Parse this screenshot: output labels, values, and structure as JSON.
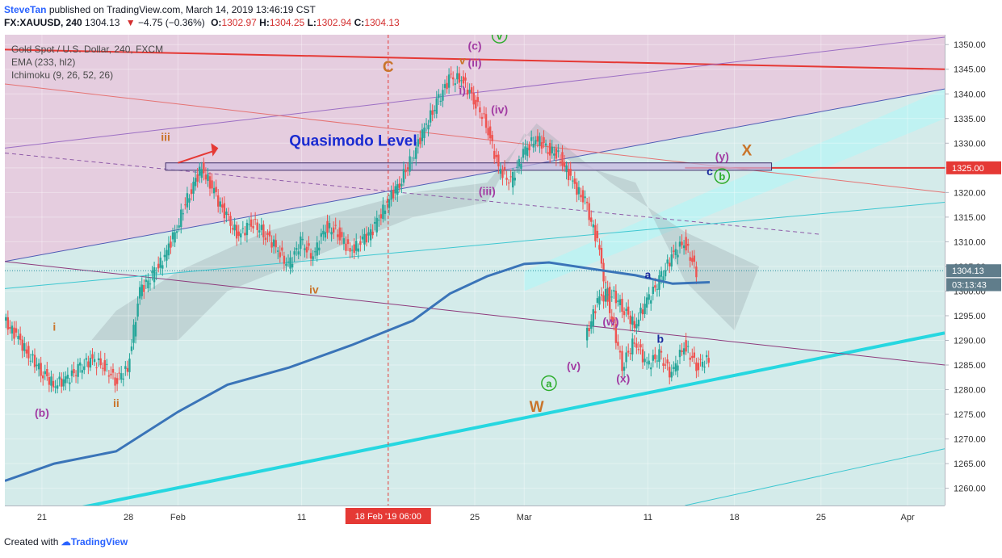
{
  "header": {
    "author": "SteveTan",
    "published": "published on TradingView.com, March 14, 2019 13:46:19 CST",
    "symbol": "FX:XAUUSD, 240",
    "last": "1304.13",
    "change": "−4.75 (−0.36%)",
    "open_label": "O:",
    "open": "1302.97",
    "high_label": "H:",
    "high": "1304.25",
    "low_label": "L:",
    "low": "1302.94",
    "close_label": "C:",
    "close": "1304.13"
  },
  "legend": {
    "title": "Gold Spot / U.S. Dollar, 240, FXCM",
    "ema": "EMA (233, hl2)",
    "ichimoku": "Ichimoku (9, 26, 52, 26)"
  },
  "chart_data": {
    "type": "candlestick",
    "y_axis": {
      "range": [
        1256.5,
        1352
      ],
      "ticks": [
        1260,
        1265,
        1270,
        1275,
        1280,
        1285,
        1290,
        1295,
        1300,
        1305,
        1310,
        1315,
        1320,
        1325,
        1330,
        1335,
        1340,
        1345,
        1350
      ],
      "tick_labels": [
        "1260.00",
        "1265.00",
        "1270.00",
        "1275.00",
        "1280.00",
        "1285.00",
        "1290.00",
        "1295.00",
        "1300.00",
        "1305.00",
        "1310.00",
        "1315.00",
        "1320.00",
        "1325.00",
        "1330.00",
        "1335.00",
        "1340.00",
        "1345.00",
        "1350.00"
      ]
    },
    "x_axis": {
      "range": [
        "2019-01-18",
        "2019-04-04"
      ],
      "ticks": [
        "2019-01-21",
        "2019-01-28",
        "2019-02-01",
        "2019-02-11",
        "2019-02-25",
        "2019-03-01",
        "2019-03-11",
        "2019-03-18",
        "2019-03-25",
        "2019-04-01"
      ],
      "tick_labels": [
        "21",
        "28",
        "Feb",
        "11",
        "25",
        "Mar",
        "11",
        "18",
        "25",
        "Apr"
      ],
      "crosshair_label": "18 Feb '19   06:00",
      "crosshair_date": "2019-02-18"
    },
    "price_labels": [
      {
        "value": 1325.0,
        "text": "1325.00",
        "color": "#e53935"
      },
      {
        "value": 1304.13,
        "text": "1304.13",
        "color": "#607d8b"
      },
      {
        "value": 1301.3,
        "text": "03:13:43",
        "color": "#607d8b"
      }
    ],
    "series": [
      {
        "name": "EMA (233, hl2)",
        "type": "line",
        "color": "#3a74b8",
        "points": [
          [
            "2019-01-18",
            1261.5
          ],
          [
            "2019-01-22",
            1265
          ],
          [
            "2019-01-27",
            1267.5
          ],
          [
            "2019-02-01",
            1275.5
          ],
          [
            "2019-02-05",
            1281
          ],
          [
            "2019-02-10",
            1284.5
          ],
          [
            "2019-02-15",
            1289
          ],
          [
            "2019-02-20",
            1294
          ],
          [
            "2019-02-23",
            1299.5
          ],
          [
            "2019-02-26",
            1303
          ],
          [
            "2019-03-01",
            1305.5
          ],
          [
            "2019-03-03",
            1305.8
          ],
          [
            "2019-03-07",
            1304.3
          ],
          [
            "2019-03-10",
            1303.2
          ],
          [
            "2019-03-13",
            1301.5
          ],
          [
            "2019-03-16",
            1301.8
          ]
        ]
      },
      {
        "name": "Price",
        "type": "candlestick",
        "color_up": "#26a69a",
        "color_down": "#ef5350",
        "path": [
          [
            "2019-01-18",
            1294
          ],
          [
            "2019-01-19",
            1291
          ],
          [
            "2019-01-20",
            1287
          ],
          [
            "2019-01-21",
            1284
          ],
          [
            "2019-01-22",
            1281
          ],
          [
            "2019-01-23",
            1282
          ],
          [
            "2019-01-24",
            1284
          ],
          [
            "2019-01-25",
            1286
          ],
          [
            "2019-01-26",
            1285
          ],
          [
            "2019-01-27",
            1282
          ],
          [
            "2019-01-28",
            1284
          ],
          [
            "2019-01-29",
            1300
          ],
          [
            "2019-01-30",
            1303
          ],
          [
            "2019-01-31",
            1307
          ],
          [
            "2019-02-01",
            1313
          ],
          [
            "2019-02-02",
            1320
          ],
          [
            "2019-02-03",
            1325
          ],
          [
            "2019-02-04",
            1320
          ],
          [
            "2019-02-05",
            1315
          ],
          [
            "2019-02-06",
            1311
          ],
          [
            "2019-02-07",
            1314
          ],
          [
            "2019-02-08",
            1312
          ],
          [
            "2019-02-09",
            1309
          ],
          [
            "2019-02-10",
            1305
          ],
          [
            "2019-02-11",
            1310
          ],
          [
            "2019-02-12",
            1307
          ],
          [
            "2019-02-13",
            1313
          ],
          [
            "2019-02-14",
            1312
          ],
          [
            "2019-02-15",
            1308
          ],
          [
            "2019-02-16",
            1310
          ],
          [
            "2019-02-17",
            1313
          ],
          [
            "2019-02-18",
            1318
          ],
          [
            "2019-02-19",
            1322
          ],
          [
            "2019-02-20",
            1327
          ],
          [
            "2019-02-21",
            1333
          ],
          [
            "2019-02-22",
            1338
          ],
          [
            "2019-02-23",
            1343
          ],
          [
            "2019-02-24",
            1343
          ],
          [
            "2019-02-25",
            1339
          ],
          [
            "2019-02-26",
            1334
          ],
          [
            "2019-02-27",
            1325
          ],
          [
            "2019-02-28",
            1322
          ],
          [
            "2019-03-01",
            1328
          ],
          [
            "2019-03-02",
            1331
          ],
          [
            "2019-03-03",
            1329
          ],
          [
            "2019-03-04",
            1327
          ],
          [
            "2019-03-05",
            1322
          ],
          [
            "2019-03-06",
            1318
          ],
          [
            "2019-03-07",
            1310
          ],
          [
            "2019-03-08",
            1296
          ],
          [
            "2019-03-09",
            1285
          ],
          [
            "2019-03-10",
            1290
          ],
          [
            "2019-03-11",
            1285
          ],
          [
            "2019-03-12",
            1287
          ],
          [
            "2019-03-13",
            1283
          ],
          [
            "2019-03-14",
            1289
          ],
          [
            "2019-03-15",
            1285
          ],
          [
            "2019-03-16",
            1286
          ]
        ],
        "path_tail": [
          [
            "2019-03-06",
            1290
          ],
          [
            "2019-03-07",
            1298
          ],
          [
            "2019-03-08",
            1300
          ],
          [
            "2019-03-09",
            1297
          ],
          [
            "2019-03-10",
            1293
          ],
          [
            "2019-03-11",
            1298
          ],
          [
            "2019-03-12",
            1302
          ],
          [
            "2019-03-13",
            1307
          ],
          [
            "2019-03-14",
            1310
          ],
          [
            "2019-03-15",
            1304
          ]
        ]
      }
    ],
    "lines": [
      {
        "name": "quasimodo-level",
        "color": "#e53935",
        "from": [
          "2019-03-14",
          1325
        ],
        "to": [
          "2019-04-04",
          1325
        ]
      },
      {
        "name": "channel-top-red",
        "color": "#e53935",
        "from": [
          "2019-01-18",
          1349
        ],
        "to": [
          "2019-04-04",
          1345
        ]
      },
      {
        "name": "lower-trendline",
        "color": "#26d7e0",
        "from": [
          "2019-01-18",
          1253
        ],
        "to": [
          "2019-04-04",
          1291.5
        ]
      },
      {
        "name": "purple-upper",
        "color": "#9c6fc4",
        "from": [
          "2019-01-18",
          1329
        ],
        "to": [
          "2019-04-04",
          1351.5
        ]
      },
      {
        "name": "blue-channel",
        "color": "#4f5bb5",
        "from": [
          "2019-01-18",
          1306
        ],
        "to": [
          "2019-04-04",
          1341
        ]
      },
      {
        "name": "red-mid",
        "color": "#e57373",
        "from": [
          "2019-01-18",
          1342
        ],
        "to": [
          "2019-04-04",
          1320
        ]
      }
    ],
    "quasimodo_zone": {
      "from_date": "2019-01-31",
      "to_date": "2019-03-21",
      "low": 1324.5,
      "high": 1326
    },
    "annotations": [
      {
        "text": "Quasimodo Level",
        "date": "2019-02-10",
        "value": 1329.5,
        "color": "#1a2bd1"
      },
      {
        "text": "iii",
        "date": "2019-01-31",
        "value": 1330.5,
        "color": "#c9742a"
      },
      {
        "text": "i",
        "date": "2019-01-22",
        "value": 1292,
        "color": "#c9742a"
      },
      {
        "text": "ii",
        "date": "2019-01-27",
        "value": 1276.5,
        "color": "#c9742a"
      },
      {
        "text": "iv",
        "date": "2019-02-12",
        "value": 1299.5,
        "color": "#c9742a"
      },
      {
        "text": "v",
        "date": "2019-02-24",
        "value": 1346,
        "color": "#c9742a"
      },
      {
        "text": "C",
        "date": "2019-02-18",
        "value": 1344.5,
        "color": "#c9742a"
      },
      {
        "text": "(b)",
        "date": "2019-01-21",
        "value": 1274.5,
        "color": "#a23ca3"
      },
      {
        "text": "(c)",
        "date": "2019-02-25",
        "value": 1349,
        "color": "#a23ca3"
      },
      {
        "text": "(ii)",
        "date": "2019-02-25",
        "value": 1345.5,
        "color": "#a23ca3"
      },
      {
        "text": "i)",
        "date": "2019-02-24",
        "value": 1340,
        "color": "#a23ca3"
      },
      {
        "text": "(iv)",
        "date": "2019-02-27",
        "value": 1336,
        "color": "#a23ca3"
      },
      {
        "text": "(iii)",
        "date": "2019-02-26",
        "value": 1319.5,
        "color": "#a23ca3"
      },
      {
        "text": "(w)",
        "date": "2019-03-08",
        "value": 1293,
        "color": "#a23ca3"
      },
      {
        "text": "(v)",
        "date": "2019-03-05",
        "value": 1284,
        "color": "#a23ca3"
      },
      {
        "text": "(x)",
        "date": "2019-03-09",
        "value": 1281.5,
        "color": "#a23ca3"
      },
      {
        "text": "(y)",
        "date": "2019-03-17",
        "value": 1326.5,
        "color": "#a23ca3"
      },
      {
        "text": "W",
        "date": "2019-03-02",
        "value": 1275.5,
        "color": "#c9742a"
      },
      {
        "text": "X",
        "date": "2019-03-19",
        "value": 1327.5,
        "color": "#c9742a"
      },
      {
        "text": "a",
        "date": "2019-03-11",
        "value": 1302.5,
        "color": "#1a2a9e"
      },
      {
        "text": "b",
        "date": "2019-03-12",
        "value": 1289.5,
        "color": "#1a2a9e"
      },
      {
        "text": "c",
        "date": "2019-03-16",
        "value": 1323.5,
        "color": "#1a2a9e"
      }
    ],
    "circled_labels": [
      {
        "text": "v",
        "date": "2019-02-27",
        "value": 1351,
        "color": "#2cad2c"
      },
      {
        "text": "a",
        "date": "2019-03-03",
        "value": 1280.5,
        "color": "#2cad2c"
      },
      {
        "text": "b",
        "date": "2019-03-17",
        "value": 1322.5,
        "color": "#2cad2c"
      }
    ]
  },
  "footer": {
    "created_with": "Created with",
    "brand": "TradingView"
  }
}
